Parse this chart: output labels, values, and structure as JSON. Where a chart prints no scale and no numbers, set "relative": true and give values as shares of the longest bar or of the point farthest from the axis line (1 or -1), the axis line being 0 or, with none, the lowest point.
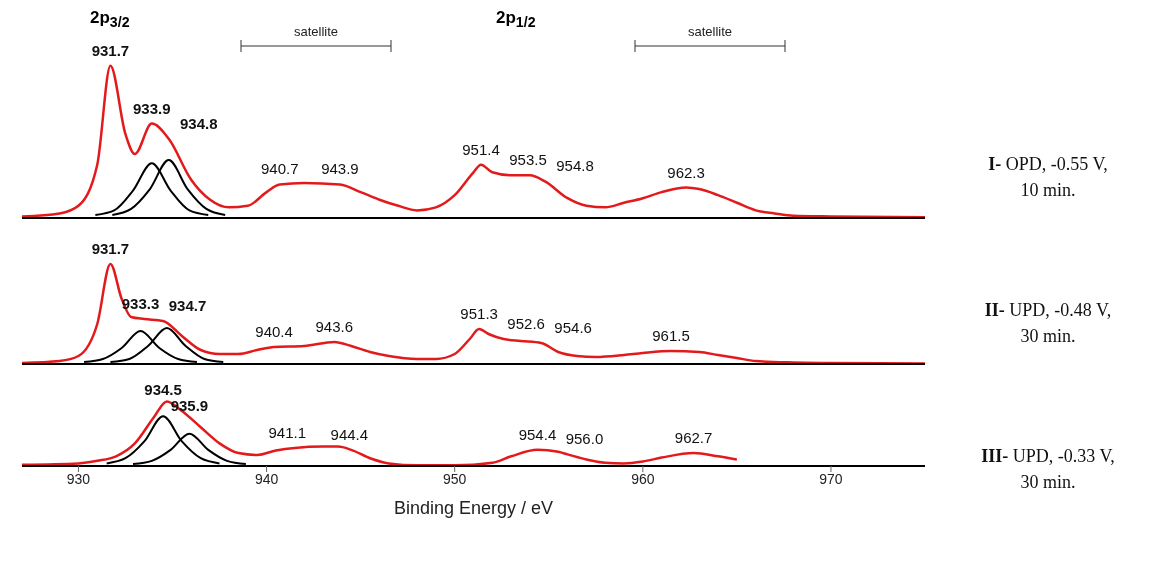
{
  "chart_data": [
    {
      "type": "line",
      "relative": true,
      "marker": "none",
      "xlim": [
        927,
        975
      ],
      "tick_labels": false,
      "annotations": [
        "I- OPD, -0.55 V, 10 min.",
        "2p$_{3/2}$",
        "2p$_{1/2}$",
        "satellite",
        "satellite",
        {
          "text": "931.7",
          "x": 931.7,
          "y": 1.0
        },
        {
          "text": "933.9",
          "x": 933.9,
          "y": 0.62
        },
        {
          "text": "934.8",
          "x": 934.8,
          "y": 0.52
        },
        {
          "text": "940.7",
          "x": 940.7,
          "y": 0.22
        },
        {
          "text": "943.9",
          "x": 943.9,
          "y": 0.22
        },
        {
          "text": "951.4",
          "x": 951.4,
          "y": 0.35
        },
        {
          "text": "953.5",
          "x": 953.5,
          "y": 0.28
        },
        {
          "text": "954.8",
          "x": 954.8,
          "y": 0.24
        },
        {
          "text": "962.3",
          "x": 962.3,
          "y": 0.2
        }
      ],
      "series": [
        {
          "color": "#e31a1c",
          "x": [
            927,
            929,
            930,
            931,
            931.7,
            932.5,
            933,
            933.9,
            934.8,
            936,
            937,
            938,
            939,
            940,
            940.7,
            942,
            943.9,
            945,
            946,
            947,
            948,
            949,
            950,
            951,
            951.4,
            952,
            953,
            954,
            954.8,
            956,
            957,
            958,
            959,
            960,
            961,
            962.3,
            963,
            964,
            965,
            966,
            967,
            968,
            970,
            975
          ],
          "values": [
            0.01,
            0.03,
            0.08,
            0.35,
            1.0,
            0.55,
            0.42,
            0.62,
            0.52,
            0.25,
            0.12,
            0.07,
            0.08,
            0.17,
            0.22,
            0.23,
            0.22,
            0.17,
            0.12,
            0.08,
            0.05,
            0.07,
            0.15,
            0.3,
            0.35,
            0.3,
            0.28,
            0.28,
            0.24,
            0.13,
            0.08,
            0.07,
            0.1,
            0.13,
            0.17,
            0.2,
            0.19,
            0.15,
            0.1,
            0.05,
            0.03,
            0.015,
            0.01,
            0.005
          ]
        },
        {
          "color": "#000000",
          "x": [
            930.9,
            931.9,
            932.9,
            933.9,
            934.9,
            935.9,
            936.9
          ],
          "values": [
            0.02,
            0.05,
            0.18,
            0.36,
            0.18,
            0.05,
            0.02
          ]
        },
        {
          "color": "#000000",
          "x": [
            931.8,
            932.8,
            933.8,
            934.8,
            935.8,
            936.8,
            937.8
          ],
          "values": [
            0.02,
            0.06,
            0.19,
            0.38,
            0.19,
            0.06,
            0.02
          ]
        }
      ]
    },
    {
      "type": "line",
      "relative": true,
      "marker": "none",
      "xlim": [
        927,
        975
      ],
      "tick_labels": false,
      "annotations": [
        "II- UPD, -0.48 V, 30 min.",
        {
          "text": "931.7",
          "x": 931.7,
          "y": 1.0
        },
        {
          "text": "933.3",
          "x": 933.3,
          "y": 0.45
        },
        {
          "text": "934.7",
          "x": 934.7,
          "y": 0.43
        },
        {
          "text": "940.4",
          "x": 940.4,
          "y": 0.17
        },
        {
          "text": "943.6",
          "x": 943.6,
          "y": 0.22
        },
        {
          "text": "951.3",
          "x": 951.3,
          "y": 0.35
        },
        {
          "text": "952.6",
          "x": 952.6,
          "y": 0.25
        },
        {
          "text": "954.6",
          "x": 954.6,
          "y": 0.21
        },
        {
          "text": "961.5",
          "x": 961.5,
          "y": 0.13
        }
      ],
      "series": [
        {
          "color": "#e31a1c",
          "x": [
            927,
            929,
            930,
            931,
            931.7,
            932.3,
            932.8,
            933.5,
            934.5,
            935.5,
            936.5,
            937.5,
            938.5,
            939.5,
            940.4,
            942,
            943.6,
            944.5,
            945.5,
            946.5,
            948,
            949,
            950,
            950.8,
            951.3,
            951.8,
            952.6,
            953.5,
            954.6,
            955.5,
            956.5,
            957.5,
            959,
            960,
            961.5,
            963,
            964,
            965,
            966,
            968,
            970,
            975
          ],
          "values": [
            0.01,
            0.03,
            0.08,
            0.4,
            1.0,
            0.65,
            0.47,
            0.45,
            0.43,
            0.28,
            0.14,
            0.1,
            0.1,
            0.14,
            0.17,
            0.18,
            0.22,
            0.18,
            0.12,
            0.08,
            0.05,
            0.05,
            0.1,
            0.25,
            0.35,
            0.3,
            0.25,
            0.23,
            0.21,
            0.12,
            0.08,
            0.07,
            0.09,
            0.11,
            0.13,
            0.12,
            0.09,
            0.06,
            0.03,
            0.015,
            0.01,
            0.005
          ]
        },
        {
          "color": "#000000",
          "x": [
            930.3,
            931.3,
            932.3,
            933.3,
            934.3,
            935.3,
            936.3
          ],
          "values": [
            0.02,
            0.05,
            0.16,
            0.33,
            0.16,
            0.05,
            0.02
          ]
        },
        {
          "color": "#000000",
          "x": [
            931.7,
            932.7,
            933.7,
            934.7,
            935.7,
            936.7,
            937.7
          ],
          "values": [
            0.02,
            0.05,
            0.18,
            0.36,
            0.18,
            0.05,
            0.02
          ]
        }
      ]
    },
    {
      "type": "line",
      "relative": true,
      "marker": "none",
      "xlabel": "Binding Energy / eV",
      "xlim": [
        927,
        975
      ],
      "xticks": [
        930,
        940,
        950,
        960,
        970
      ],
      "tick_labels": "x",
      "annotations": [
        "III- UPD, -0.33 V, 30 min.",
        {
          "text": "934.5",
          "x": 934.5,
          "y": 0.95
        },
        {
          "text": "935.9",
          "x": 935.9,
          "y": 0.7
        },
        {
          "text": "941.1",
          "x": 941.1,
          "y": 0.28
        },
        {
          "text": "944.4",
          "x": 944.4,
          "y": 0.25
        },
        {
          "text": "954.4",
          "x": 954.4,
          "y": 0.25
        },
        {
          "text": "956.0",
          "x": 956.0,
          "y": 0.18
        },
        {
          "text": "962.7",
          "x": 962.7,
          "y": 0.2
        }
      ],
      "series": [
        {
          "color": "#e31a1c",
          "x": [
            927,
            930,
            931,
            932,
            933,
            934,
            934.7,
            935.5,
            936.5,
            937.5,
            938.5,
            939.5,
            940.5,
            941.5,
            943,
            943.8,
            944.5,
            945.5,
            946.5,
            948,
            950,
            952,
            953,
            954.4,
            955.5,
            956,
            957,
            958,
            959,
            960,
            961,
            962.7,
            964,
            965
          ],
          "values": [
            0.02,
            0.04,
            0.08,
            0.15,
            0.35,
            0.75,
            1.0,
            0.85,
            0.6,
            0.35,
            0.2,
            0.17,
            0.24,
            0.28,
            0.3,
            0.3,
            0.25,
            0.12,
            0.04,
            0.01,
            0.01,
            0.05,
            0.15,
            0.25,
            0.22,
            0.18,
            0.1,
            0.05,
            0.04,
            0.07,
            0.13,
            0.2,
            0.15,
            0.1
          ]
        },
        {
          "color": "#000000",
          "x": [
            931.5,
            932.5,
            933.5,
            934.5,
            935.5,
            936.5,
            937.5
          ],
          "values": [
            0.04,
            0.12,
            0.38,
            0.77,
            0.38,
            0.12,
            0.04
          ]
        },
        {
          "color": "#000000",
          "x": [
            932.9,
            933.9,
            934.9,
            935.9,
            936.9,
            937.9,
            938.9
          ],
          "values": [
            0.03,
            0.08,
            0.25,
            0.5,
            0.25,
            0.08,
            0.03
          ]
        }
      ]
    }
  ]
}
